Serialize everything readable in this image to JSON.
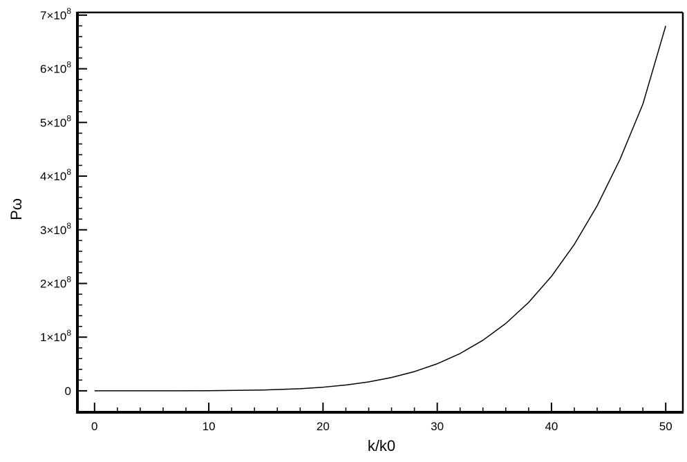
{
  "chart_data": {
    "type": "line",
    "title": "",
    "xlabel": "k/k0",
    "ylabel": "Pω",
    "xlim": [
      -1.5,
      51.5
    ],
    "ylim": [
      -40000000.0,
      705000000.0
    ],
    "x_ticks": [
      0,
      10,
      20,
      30,
      40,
      50
    ],
    "x_tick_labels": [
      "0",
      "10",
      "20",
      "30",
      "40",
      "50"
    ],
    "x_minor_step": 2,
    "y_ticks": [
      0,
      100000000,
      200000000,
      300000000,
      400000000,
      500000000,
      600000000,
      700000000
    ],
    "y_tick_labels": [
      {
        "mantissa": "0",
        "exponent": ""
      },
      {
        "mantissa": "1×10",
        "exponent": "8"
      },
      {
        "mantissa": "2×10",
        "exponent": "8"
      },
      {
        "mantissa": "3×10",
        "exponent": "8"
      },
      {
        "mantissa": "4×10",
        "exponent": "8"
      },
      {
        "mantissa": "5×10",
        "exponent": "8"
      },
      {
        "mantissa": "6×10",
        "exponent": "8"
      },
      {
        "mantissa": "7×10",
        "exponent": "8"
      }
    ],
    "y_minor_step": 20000000,
    "grid": false,
    "legend": "none",
    "series": [
      {
        "color": "#000000",
        "x": [
          0,
          5,
          10,
          15,
          18,
          20,
          22,
          24,
          26,
          28,
          30,
          32,
          34,
          36,
          38,
          40,
          42,
          44,
          46,
          48,
          50
        ],
        "y": [
          0,
          6500,
          210000,
          1590000,
          3950000,
          6720000,
          10800000,
          16600000,
          24800000,
          35800000,
          50400000,
          69500000,
          94200000,
          125500000,
          164700000,
          213300000,
          272800000,
          344900000,
          431300000,
          534200000,
          680000000
        ]
      }
    ]
  }
}
